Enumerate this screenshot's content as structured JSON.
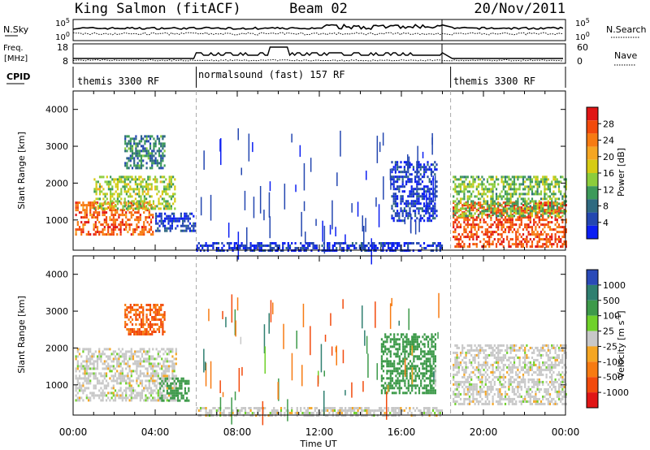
{
  "header": {
    "station": "King Salmon (fitACF)",
    "beam": "Beam 02",
    "date": "20/Nov/2011"
  },
  "strips": {
    "nsky_label": "N.Sky",
    "nsearch_label": "N.Search",
    "freq_label_1": "Freq.",
    "freq_label_2": "[MHz]",
    "nave_label": "Nave",
    "cpid_label": "CPID",
    "nsky_ticks": [
      "10^5",
      "10^0"
    ],
    "nsearch_ticks": [
      "10^5",
      "10^0"
    ],
    "freq_ticks": [
      "18",
      "8"
    ],
    "nave_ticks": [
      "60",
      "0"
    ]
  },
  "cpid": [
    {
      "label": "themis 3300 RF",
      "start": 0,
      "end": 6
    },
    {
      "label": "normalsound (fast) 157 RF",
      "start": 6,
      "end": 18.1
    },
    {
      "label": "themis 3300 RF",
      "start": 18.4,
      "end": 24
    }
  ],
  "colorbars": {
    "power": {
      "label": "Power [dB]",
      "ticks": [
        "28",
        "24",
        "20",
        "16",
        "12",
        "8",
        "4"
      ],
      "colors": [
        "#e01515",
        "#f24a0c",
        "#f77b12",
        "#f5a623",
        "#d6cb14",
        "#8ccd3c",
        "#3d9a5a",
        "#2f6a80",
        "#2447b0",
        "#0b1ef2"
      ]
    },
    "velocity": {
      "label": "Velocity [m s^-1]",
      "ticks": [
        "1000",
        "500",
        "100",
        "25",
        "-25",
        "-100",
        "-500",
        "-1000"
      ],
      "colors": [
        "#2a4ab8",
        "#2f7f70",
        "#3d9a4a",
        "#6fd12a",
        "#c8c8c8",
        "#f5a623",
        "#f77b12",
        "#f24a0c",
        "#e01515"
      ]
    }
  },
  "chart_data": [
    {
      "type": "heatmap",
      "title": "",
      "xlabel": "",
      "ylabel": "Slant Range [km]",
      "xlim": [
        "00:00",
        "24:00"
      ],
      "ylim": [
        180,
        4500
      ],
      "x_ticks": [
        "00:00",
        "04:00",
        "08:00",
        "12:00",
        "16:00",
        "20:00",
        "00:00"
      ],
      "y_ticks": [
        1000,
        2000,
        3000,
        4000
      ],
      "colorbar": "Power [dB]",
      "regions": [
        {
          "t": [
            0.1,
            3.9
          ],
          "range_km": [
            600,
            1500
          ],
          "power_db": 26
        },
        {
          "t": [
            1.0,
            5.0
          ],
          "range_km": [
            1300,
            2200
          ],
          "power_db": 16
        },
        {
          "t": [
            2.5,
            4.5
          ],
          "range_km": [
            2400,
            3300
          ],
          "power_db": 10
        },
        {
          "t": [
            4.0,
            6.0
          ],
          "range_km": [
            700,
            1200
          ],
          "power_db": 5
        },
        {
          "t": [
            6.0,
            18.0
          ],
          "range_km": [
            180,
            400
          ],
          "power_db": 4
        },
        {
          "t": [
            15.5,
            17.7
          ],
          "range_km": [
            1000,
            2600
          ],
          "power_db": 5
        },
        {
          "t": [
            18.5,
            24.0
          ],
          "range_km": [
            300,
            1500
          ],
          "power_db": 27
        },
        {
          "t": [
            18.5,
            24.0
          ],
          "range_km": [
            1100,
            2200
          ],
          "power_db": 14
        }
      ]
    },
    {
      "type": "heatmap",
      "title": "",
      "xlabel": "Time UT",
      "ylabel": "Slant Range [km]",
      "xlim": [
        "00:00",
        "24:00"
      ],
      "ylim": [
        180,
        4500
      ],
      "x_ticks": [
        "00:00",
        "04:00",
        "08:00",
        "12:00",
        "16:00",
        "20:00",
        "00:00"
      ],
      "y_ticks": [
        1000,
        2000,
        3000,
        4000
      ],
      "colorbar": "Velocity [m s^-1]",
      "regions": [
        {
          "t": [
            0.1,
            5.0
          ],
          "range_km": [
            600,
            2000
          ],
          "velocity_ms": 0
        },
        {
          "t": [
            2.5,
            4.5
          ],
          "range_km": [
            2400,
            3200
          ],
          "velocity_ms": -300
        },
        {
          "t": [
            4.2,
            5.6
          ],
          "range_km": [
            600,
            1200
          ],
          "velocity_ms": 100
        },
        {
          "t": [
            6.0,
            18.0
          ],
          "range_km": [
            180,
            400
          ],
          "velocity_ms": 0
        },
        {
          "t": [
            15.0,
            17.7
          ],
          "range_km": [
            800,
            2400
          ],
          "velocity_ms": 100
        },
        {
          "t": [
            18.5,
            24.0
          ],
          "range_km": [
            500,
            2100
          ],
          "velocity_ms": 0
        }
      ]
    }
  ]
}
